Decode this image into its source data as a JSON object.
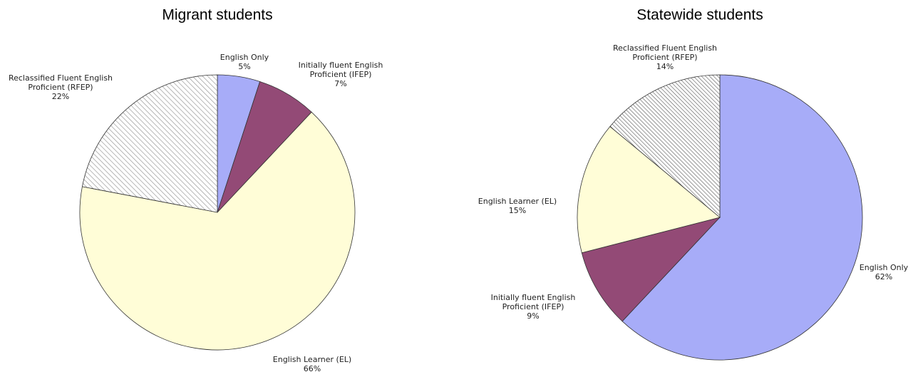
{
  "chart_data": [
    {
      "type": "pie",
      "title": "Migrant students",
      "categories": [
        "English Only",
        "Initially fluent English Proficient (IFEP)",
        "English Learner (EL)",
        "Reclassified Fluent English Proficient (RFEP)"
      ],
      "values": [
        5,
        7,
        66,
        22
      ],
      "value_labels": [
        "5%",
        "7%",
        "66%",
        "22%"
      ],
      "colors": [
        "#a7acf8",
        "#934a76",
        "#fffdd7",
        "#999999"
      ],
      "hatch": [
        false,
        false,
        false,
        true
      ]
    },
    {
      "type": "pie",
      "title": "Statewide students",
      "categories": [
        "English Only",
        "Initially fluent English Proficient (IFEP)",
        "English Learner (EL)",
        "Reclassified Fluent English Proficient (RFEP)"
      ],
      "values": [
        62,
        9,
        15,
        14
      ],
      "value_labels": [
        "62%",
        "9%",
        "15%",
        "14%"
      ],
      "colors": [
        "#a7acf8",
        "#934a76",
        "#fffdd7",
        "#999999"
      ],
      "hatch": [
        false,
        false,
        false,
        true
      ]
    }
  ]
}
